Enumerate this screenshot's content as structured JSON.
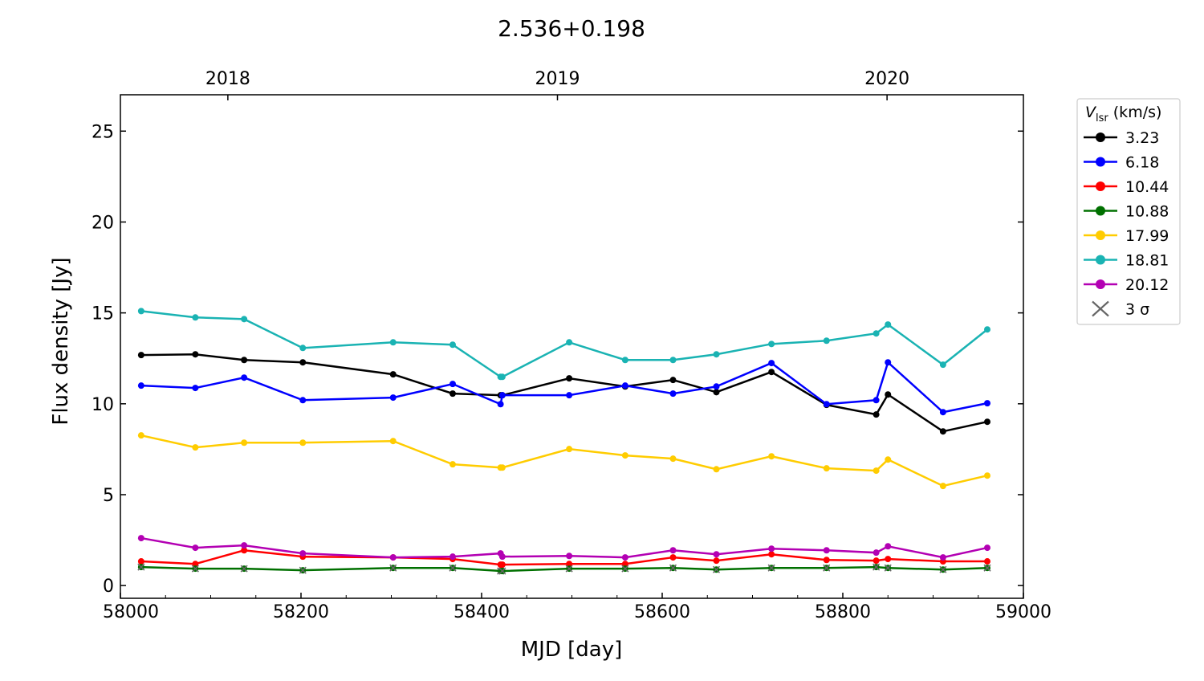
{
  "chart_data": {
    "type": "line",
    "title": "2.536+0.198",
    "xlabel": "MJD [day]",
    "ylabel": "Flux density [Jy]",
    "xlim": [
      58000,
      59000
    ],
    "ylim": [
      -0.7,
      27
    ],
    "xticks": [
      58000,
      58200,
      58400,
      58600,
      58800,
      59000
    ],
    "yticks": [
      0,
      5,
      10,
      15,
      20,
      25
    ],
    "top_axis": {
      "ticks": [
        {
          "label": "2018",
          "mjd": 58119
        },
        {
          "label": "2019",
          "mjd": 58484
        },
        {
          "label": "2020",
          "mjd": 58849
        }
      ]
    },
    "legend": {
      "title_main": "V",
      "title_sub": "lsr",
      "title_unit": " (km/s)",
      "placement": "outside-right",
      "sigma_label": "3 σ"
    },
    "x": [
      58023,
      58083,
      58137,
      58202,
      58302,
      58368,
      58421,
      58423,
      58497,
      58559,
      58612,
      58660,
      58721,
      58782,
      58837,
      58850,
      58911,
      58960
    ],
    "series": [
      {
        "name": "3.23",
        "color": "#000000",
        "values": [
          12.68,
          12.72,
          12.41,
          12.28,
          11.62,
          10.56,
          10.47,
          10.47,
          11.4,
          10.95,
          11.31,
          10.64,
          11.75,
          9.94,
          9.41,
          10.51,
          8.48,
          9.01
        ]
      },
      {
        "name": "6.18",
        "color": "#0000ff",
        "values": [
          11.0,
          10.87,
          11.44,
          10.2,
          10.34,
          11.09,
          9.98,
          10.47,
          10.47,
          11.0,
          10.56,
          10.95,
          12.24,
          9.98,
          10.2,
          12.28,
          9.54,
          10.03
        ]
      },
      {
        "name": "10.44",
        "color": "#ff0000",
        "values": [
          1.33,
          1.19,
          1.94,
          1.59,
          1.55,
          1.46,
          1.15,
          1.15,
          1.19,
          1.19,
          1.55,
          1.37,
          1.72,
          1.41,
          1.37,
          1.46,
          1.33,
          1.33
        ]
      },
      {
        "name": "10.88",
        "color": "#007000",
        "upper_limit_3sigma": true,
        "values": [
          1.02,
          0.93,
          0.93,
          0.84,
          0.97,
          0.97,
          0.8,
          0.8,
          0.93,
          0.93,
          0.97,
          0.88,
          0.97,
          0.97,
          1.02,
          0.97,
          0.88,
          0.97
        ]
      },
      {
        "name": "17.99",
        "color": "#ffcc00",
        "values": [
          8.26,
          7.6,
          7.86,
          7.86,
          7.95,
          6.67,
          6.49,
          6.49,
          7.51,
          7.16,
          6.98,
          6.4,
          7.11,
          6.45,
          6.32,
          6.93,
          5.48,
          6.05
        ]
      },
      {
        "name": "18.81",
        "color": "#1ab3b3",
        "values": [
          15.1,
          14.75,
          14.66,
          13.07,
          13.38,
          13.25,
          11.48,
          11.48,
          13.38,
          12.41,
          12.41,
          12.72,
          13.29,
          13.47,
          13.87,
          14.36,
          12.15,
          14.09
        ]
      },
      {
        "name": "20.12",
        "color": "#b300b3",
        "values": [
          2.61,
          2.08,
          2.21,
          1.77,
          1.55,
          1.59,
          1.77,
          1.59,
          1.63,
          1.55,
          1.94,
          1.72,
          2.03,
          1.94,
          1.81,
          2.16,
          1.55,
          2.08
        ]
      }
    ]
  }
}
